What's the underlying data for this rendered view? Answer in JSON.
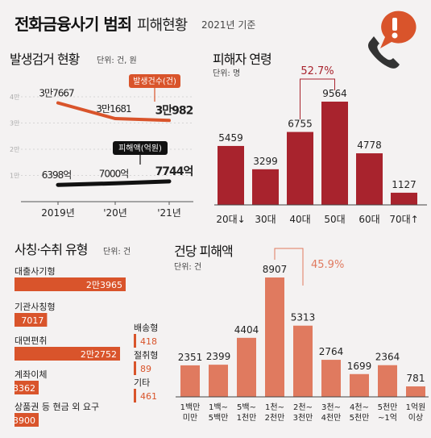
{
  "header": {
    "title": "전화금융사기 범죄",
    "subtitle": "피해현황",
    "date": "2021년 기준"
  },
  "colors": {
    "accent_orange": "#d9542b",
    "dark_red": "#a8232d",
    "salmon": "#e07a5f",
    "line_black": "#111111"
  },
  "icon": "phone-alert-icon",
  "chart_data": [
    {
      "type": "line",
      "title": "발생검거 현황",
      "unit": "단위: 건, 원",
      "categories": [
        "2019년",
        "'20년",
        "'21년"
      ],
      "y_ticks": [
        "4만",
        "3만",
        "2만",
        "1만"
      ],
      "ylim": [
        0,
        40000
      ],
      "series": [
        {
          "name": "발생건수(건)",
          "values": [
            37667,
            31681,
            30982
          ],
          "labels": [
            "3만7667",
            "3만1681",
            "3만982"
          ],
          "color": "#d9542b"
        },
        {
          "name": "피해액(억원)",
          "values": [
            6398,
            7000,
            7744
          ],
          "labels": [
            "6398억",
            "7000억",
            "7744억"
          ],
          "color": "#111111"
        }
      ]
    },
    {
      "type": "bar",
      "title": "피해자 연령",
      "unit": "단위: 명",
      "categories": [
        "20대↓",
        "30대",
        "40대",
        "50대",
        "60대",
        "70대↑"
      ],
      "values": [
        5459,
        3299,
        6755,
        9564,
        4778,
        1127
      ],
      "labels": [
        "5459",
        "3299",
        "6755",
        "9564",
        "4778",
        "1127"
      ],
      "annotation": {
        "text": "52.7%",
        "from": 2,
        "to": 3
      },
      "color": "#a8232d"
    },
    {
      "type": "bar",
      "title": "사칭·수취 유형",
      "unit": "단위: 건",
      "categories": [
        "대출사기형",
        "기관사칭형",
        "대면편취",
        "계좌이체",
        "상품권 등 현금 외 요구",
        "배송형",
        "절취형",
        "기타"
      ],
      "values": [
        23965,
        7017,
        22752,
        3362,
        3900,
        418,
        89,
        461
      ],
      "labels": [
        "2만3965",
        "7017",
        "2만2752",
        "3362",
        "3900",
        "418",
        "89",
        "461"
      ],
      "color": "#d9542b"
    },
    {
      "type": "bar",
      "title": "건당 피해액",
      "unit": "단위: 건",
      "categories": [
        "1백만 미만",
        "1백~ 5백만",
        "5백~ 1천만",
        "1천~ 2천만",
        "2천~ 3천만",
        "3천~ 4천만",
        "4천~ 5천만",
        "5천만 ~1억",
        "1억원 이상"
      ],
      "category_lines": [
        [
          "1백만",
          "미만"
        ],
        [
          "1백~",
          "5백만"
        ],
        [
          "5백~",
          "1천만"
        ],
        [
          "1천~",
          "2천만"
        ],
        [
          "2천~",
          "3천만"
        ],
        [
          "3천~",
          "4천만"
        ],
        [
          "4천~",
          "5천만"
        ],
        [
          "5천만",
          "~1억"
        ],
        [
          "1억원",
          "이상"
        ]
      ],
      "values": [
        2351,
        2399,
        4404,
        8907,
        5313,
        2764,
        1699,
        2364,
        781
      ],
      "labels": [
        "2351",
        "2399",
        "4404",
        "8907",
        "5313",
        "2764",
        "1699",
        "2364",
        "781"
      ],
      "annotation": {
        "text": "45.9%",
        "from": 3,
        "to": 4
      },
      "color": "#e07a5f"
    }
  ]
}
